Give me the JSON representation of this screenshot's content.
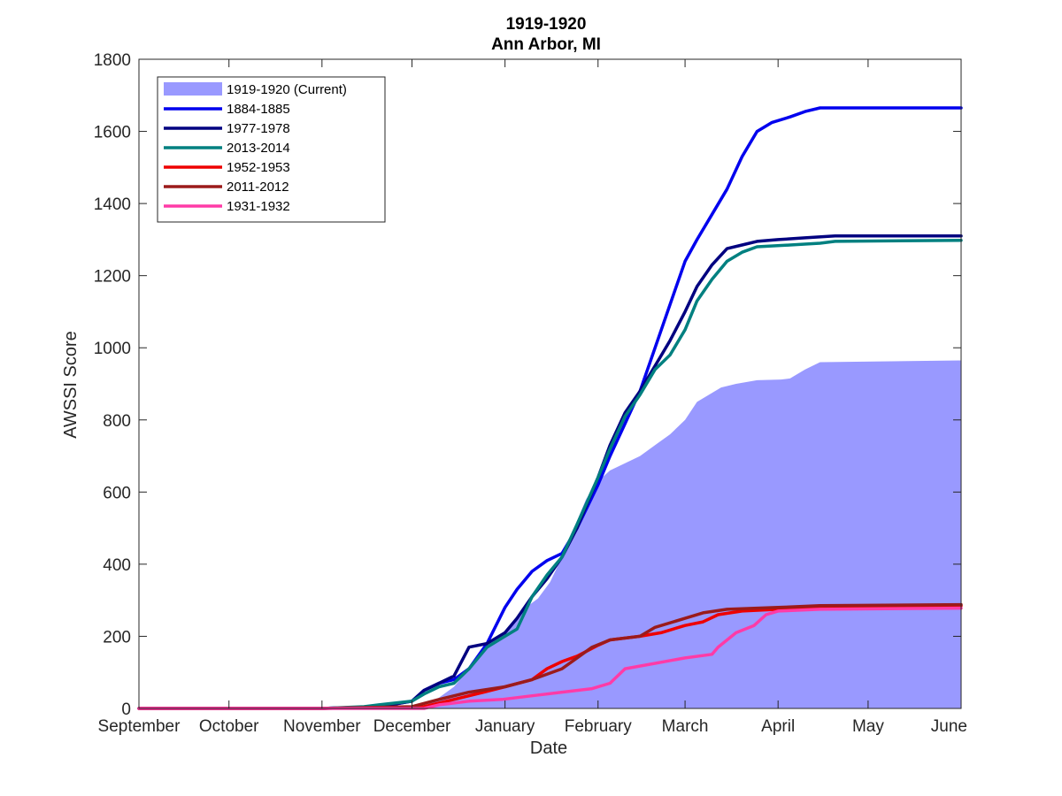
{
  "chart_data": {
    "type": "line",
    "title": "1919-1920",
    "subtitle": "Ann Arbor, MI",
    "xlabel": "Date",
    "ylabel": "AWSSI Score",
    "x_ticks": [
      "September",
      "October",
      "November",
      "December",
      "January",
      "February",
      "March",
      "April",
      "May",
      "June"
    ],
    "ylim": [
      0,
      1800
    ],
    "y_ticks": [
      "0",
      "200",
      "400",
      "600",
      "800",
      "1000",
      "1200",
      "1400",
      "1600",
      "1800"
    ],
    "legend_position": "top-left",
    "grid": false,
    "series": [
      {
        "name": "1919-1920 (Current)",
        "style": "area",
        "color": "#9999ff",
        "points": [
          [
            "2019-09-01",
            0
          ],
          [
            "2019-11-30",
            0
          ],
          [
            "2019-12-05",
            5
          ],
          [
            "2019-12-10",
            30
          ],
          [
            "2019-12-15",
            60
          ],
          [
            "2019-12-20",
            110
          ],
          [
            "2019-12-26",
            170
          ],
          [
            "2019-12-31",
            195
          ],
          [
            "2020-01-04",
            240
          ],
          [
            "2020-01-08",
            280
          ],
          [
            "2020-01-12",
            305
          ],
          [
            "2020-01-16",
            350
          ],
          [
            "2020-01-20",
            420
          ],
          [
            "2020-01-24",
            500
          ],
          [
            "2020-01-28",
            580
          ],
          [
            "2020-02-01",
            630
          ],
          [
            "2020-02-05",
            660
          ],
          [
            "2020-02-10",
            680
          ],
          [
            "2020-02-15",
            700
          ],
          [
            "2020-02-20",
            730
          ],
          [
            "2020-02-25",
            760
          ],
          [
            "2020-03-01",
            800
          ],
          [
            "2020-03-05",
            850
          ],
          [
            "2020-03-09",
            870
          ],
          [
            "2020-03-13",
            890
          ],
          [
            "2020-03-18",
            900
          ],
          [
            "2020-03-25",
            910
          ],
          [
            "2020-04-02",
            912
          ],
          [
            "2020-04-05",
            915
          ],
          [
            "2020-04-10",
            940
          ],
          [
            "2020-04-15",
            960
          ],
          [
            "2020-06-01",
            965
          ]
        ]
      },
      {
        "name": "1884-1885",
        "style": "line",
        "color": "#0000ee",
        "points": [
          [
            "2019-09-01",
            0
          ],
          [
            "2019-11-01",
            0
          ],
          [
            "2019-11-20",
            5
          ],
          [
            "2019-12-01",
            20
          ],
          [
            "2019-12-05",
            50
          ],
          [
            "2019-12-10",
            70
          ],
          [
            "2019-12-15",
            80
          ],
          [
            "2019-12-20",
            110
          ],
          [
            "2019-12-26",
            180
          ],
          [
            "2020-01-01",
            280
          ],
          [
            "2020-01-05",
            330
          ],
          [
            "2020-01-10",
            380
          ],
          [
            "2020-01-15",
            410
          ],
          [
            "2020-01-20",
            430
          ],
          [
            "2020-01-25",
            500
          ],
          [
            "2020-02-01",
            620
          ],
          [
            "2020-02-05",
            700
          ],
          [
            "2020-02-10",
            790
          ],
          [
            "2020-02-15",
            880
          ],
          [
            "2020-02-20",
            1000
          ],
          [
            "2020-02-25",
            1120
          ],
          [
            "2020-03-01",
            1240
          ],
          [
            "2020-03-05",
            1300
          ],
          [
            "2020-03-10",
            1370
          ],
          [
            "2020-03-15",
            1440
          ],
          [
            "2020-03-20",
            1530
          ],
          [
            "2020-03-25",
            1600
          ],
          [
            "2020-03-30",
            1625
          ],
          [
            "2020-04-05",
            1640
          ],
          [
            "2020-04-10",
            1655
          ],
          [
            "2020-04-15",
            1665
          ],
          [
            "2020-06-01",
            1665
          ]
        ]
      },
      {
        "name": "1977-1978",
        "style": "line",
        "color": "#000080",
        "points": [
          [
            "2019-09-01",
            0
          ],
          [
            "2019-11-01",
            0
          ],
          [
            "2019-11-20",
            5
          ],
          [
            "2019-12-01",
            20
          ],
          [
            "2019-12-05",
            50
          ],
          [
            "2019-12-10",
            70
          ],
          [
            "2019-12-15",
            90
          ],
          [
            "2019-12-20",
            170
          ],
          [
            "2019-12-26",
            180
          ],
          [
            "2020-01-01",
            210
          ],
          [
            "2020-01-05",
            250
          ],
          [
            "2020-01-10",
            310
          ],
          [
            "2020-01-15",
            360
          ],
          [
            "2020-01-20",
            420
          ],
          [
            "2020-01-25",
            500
          ],
          [
            "2020-02-01",
            640
          ],
          [
            "2020-02-05",
            730
          ],
          [
            "2020-02-10",
            820
          ],
          [
            "2020-02-15",
            880
          ],
          [
            "2020-02-20",
            950
          ],
          [
            "2020-02-25",
            1020
          ],
          [
            "2020-03-01",
            1100
          ],
          [
            "2020-03-05",
            1170
          ],
          [
            "2020-03-10",
            1230
          ],
          [
            "2020-03-15",
            1275
          ],
          [
            "2020-03-20",
            1285
          ],
          [
            "2020-03-25",
            1295
          ],
          [
            "2020-04-01",
            1300
          ],
          [
            "2020-04-10",
            1305
          ],
          [
            "2020-04-20",
            1310
          ],
          [
            "2020-06-01",
            1310
          ]
        ]
      },
      {
        "name": "2013-2014",
        "style": "line",
        "color": "#008080",
        "points": [
          [
            "2019-09-01",
            0
          ],
          [
            "2019-11-01",
            0
          ],
          [
            "2019-11-15",
            5
          ],
          [
            "2019-11-20",
            10
          ],
          [
            "2019-12-01",
            20
          ],
          [
            "2019-12-05",
            40
          ],
          [
            "2019-12-10",
            60
          ],
          [
            "2019-12-15",
            70
          ],
          [
            "2019-12-20",
            110
          ],
          [
            "2019-12-26",
            170
          ],
          [
            "2020-01-01",
            200
          ],
          [
            "2020-01-05",
            220
          ],
          [
            "2020-01-10",
            310
          ],
          [
            "2020-01-15",
            370
          ],
          [
            "2020-01-20",
            420
          ],
          [
            "2020-01-25",
            510
          ],
          [
            "2020-02-01",
            640
          ],
          [
            "2020-02-05",
            720
          ],
          [
            "2020-02-10",
            810
          ],
          [
            "2020-02-15",
            870
          ],
          [
            "2020-02-20",
            940
          ],
          [
            "2020-02-25",
            980
          ],
          [
            "2020-03-01",
            1050
          ],
          [
            "2020-03-05",
            1130
          ],
          [
            "2020-03-10",
            1190
          ],
          [
            "2020-03-15",
            1240
          ],
          [
            "2020-03-20",
            1265
          ],
          [
            "2020-03-25",
            1280
          ],
          [
            "2020-04-05",
            1285
          ],
          [
            "2020-04-15",
            1290
          ],
          [
            "2020-04-20",
            1295
          ],
          [
            "2020-06-01",
            1298
          ]
        ]
      },
      {
        "name": "1952-1953",
        "style": "line",
        "color": "#ee0000",
        "points": [
          [
            "2019-09-01",
            0
          ],
          [
            "2019-11-01",
            0
          ],
          [
            "2019-12-05",
            5
          ],
          [
            "2019-12-15",
            25
          ],
          [
            "2019-12-25",
            45
          ],
          [
            "2020-01-01",
            60
          ],
          [
            "2020-01-10",
            80
          ],
          [
            "2020-01-15",
            110
          ],
          [
            "2020-01-20",
            130
          ],
          [
            "2020-01-25",
            145
          ],
          [
            "2020-02-01",
            175
          ],
          [
            "2020-02-05",
            190
          ],
          [
            "2020-02-15",
            200
          ],
          [
            "2020-02-22",
            210
          ],
          [
            "2020-03-01",
            230
          ],
          [
            "2020-03-07",
            240
          ],
          [
            "2020-03-12",
            260
          ],
          [
            "2020-03-20",
            270
          ],
          [
            "2020-04-01",
            275
          ],
          [
            "2020-04-15",
            280
          ],
          [
            "2020-06-01",
            285
          ]
        ]
      },
      {
        "name": "2011-2012",
        "style": "line",
        "color": "#9b1b1b",
        "points": [
          [
            "2019-09-01",
            0
          ],
          [
            "2019-11-01",
            0
          ],
          [
            "2019-12-01",
            5
          ],
          [
            "2019-12-10",
            25
          ],
          [
            "2019-12-20",
            45
          ],
          [
            "2020-01-01",
            60
          ],
          [
            "2020-01-10",
            80
          ],
          [
            "2020-01-20",
            110
          ],
          [
            "2020-01-25",
            140
          ],
          [
            "2020-01-30",
            170
          ],
          [
            "2020-02-05",
            190
          ],
          [
            "2020-02-15",
            200
          ],
          [
            "2020-02-20",
            225
          ],
          [
            "2020-03-01",
            250
          ],
          [
            "2020-03-07",
            265
          ],
          [
            "2020-03-15",
            275
          ],
          [
            "2020-04-01",
            280
          ],
          [
            "2020-04-15",
            285
          ],
          [
            "2020-06-01",
            288
          ]
        ]
      },
      {
        "name": "1931-1932",
        "style": "line",
        "color": "#ff3ba7",
        "points": [
          [
            "2019-09-01",
            0
          ],
          [
            "2019-12-05",
            0
          ],
          [
            "2019-12-10",
            10
          ],
          [
            "2019-12-20",
            20
          ],
          [
            "2019-12-31",
            25
          ],
          [
            "2020-01-10",
            35
          ],
          [
            "2020-01-20",
            45
          ],
          [
            "2020-01-30",
            55
          ],
          [
            "2020-02-05",
            70
          ],
          [
            "2020-02-10",
            110
          ],
          [
            "2020-02-20",
            125
          ],
          [
            "2020-03-01",
            140
          ],
          [
            "2020-03-10",
            150
          ],
          [
            "2020-03-12",
            170
          ],
          [
            "2020-03-18",
            210
          ],
          [
            "2020-03-24",
            230
          ],
          [
            "2020-03-28",
            260
          ],
          [
            "2020-04-01",
            270
          ],
          [
            "2020-04-15",
            275
          ],
          [
            "2020-06-01",
            278
          ]
        ]
      }
    ]
  }
}
